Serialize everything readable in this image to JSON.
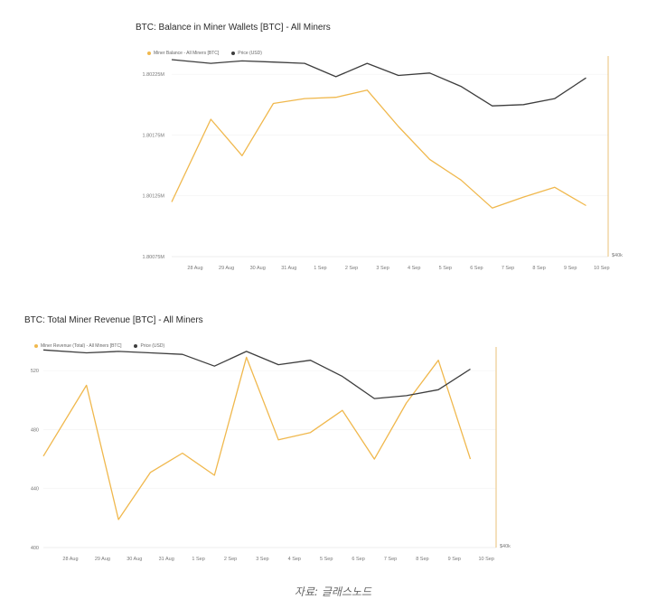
{
  "colors": {
    "balance": "#f0b84d",
    "price": "#3d3d3d",
    "axis": "#e8c27a",
    "grid": "#f2f2f2",
    "tick": "#777777"
  },
  "chart_data": [
    {
      "type": "line",
      "title": "BTC: Balance in Miner Wallets [BTC] - All Miners",
      "categories": [
        "28 Aug",
        "29 Aug",
        "30 Aug",
        "31 Aug",
        "1 Sep",
        "2 Sep",
        "3 Sep",
        "4 Sep",
        "5 Sep",
        "6 Sep",
        "7 Sep",
        "8 Sep",
        "9 Sep",
        "10 Sep"
      ],
      "y_ticks": [
        "1.80225M",
        "1.80175M",
        "1.80125M",
        "1.80075M"
      ],
      "y_tick_values": [
        1802250,
        1801750,
        1801250,
        1800750
      ],
      "ylim": [
        1800750,
        1802400
      ],
      "right_tick": "$40k",
      "series": [
        {
          "name": "Miner Balance - All Miners [BTC]",
          "values": [
            1801200,
            1801880,
            1801580,
            1802010,
            1802050,
            1802060,
            1802120,
            1801820,
            1801550,
            1801380,
            1801150,
            1801240,
            1801320,
            1801170
          ]
        },
        {
          "name": "Price (USD)",
          "values": [
            1802370,
            1802340,
            1802360,
            1802350,
            1802340,
            1802230,
            1802340,
            1802240,
            1802260,
            1802150,
            1801990,
            1802000,
            1802050,
            1802220
          ]
        }
      ],
      "legend": "top-left"
    },
    {
      "type": "line",
      "title": "BTC: Total Miner Revenue [BTC] - All Miners",
      "categories": [
        "28 Aug",
        "29 Aug",
        "30 Aug",
        "31 Aug",
        "1 Sep",
        "2 Sep",
        "3 Sep",
        "4 Sep",
        "5 Sep",
        "6 Sep",
        "7 Sep",
        "8 Sep",
        "9 Sep",
        "10 Sep"
      ],
      "y_ticks": [
        "520",
        "480",
        "440",
        "400"
      ],
      "y_tick_values": [
        520,
        480,
        440,
        400
      ],
      "ylim": [
        400,
        536
      ],
      "right_tick": "$40k",
      "series": [
        {
          "name": "Miner Revenue (Total) - All Miners [BTC]",
          "values": [
            462,
            510,
            419,
            451,
            464,
            449,
            529,
            473,
            478,
            493,
            460,
            498,
            527,
            460
          ]
        },
        {
          "name": "Price (USD)",
          "values": [
            534,
            532,
            533,
            532,
            531,
            523,
            533,
            524,
            527,
            516,
            501,
            503,
            507,
            521
          ]
        }
      ],
      "legend": "top-left"
    }
  ],
  "caption": "자료: 글래스노드"
}
